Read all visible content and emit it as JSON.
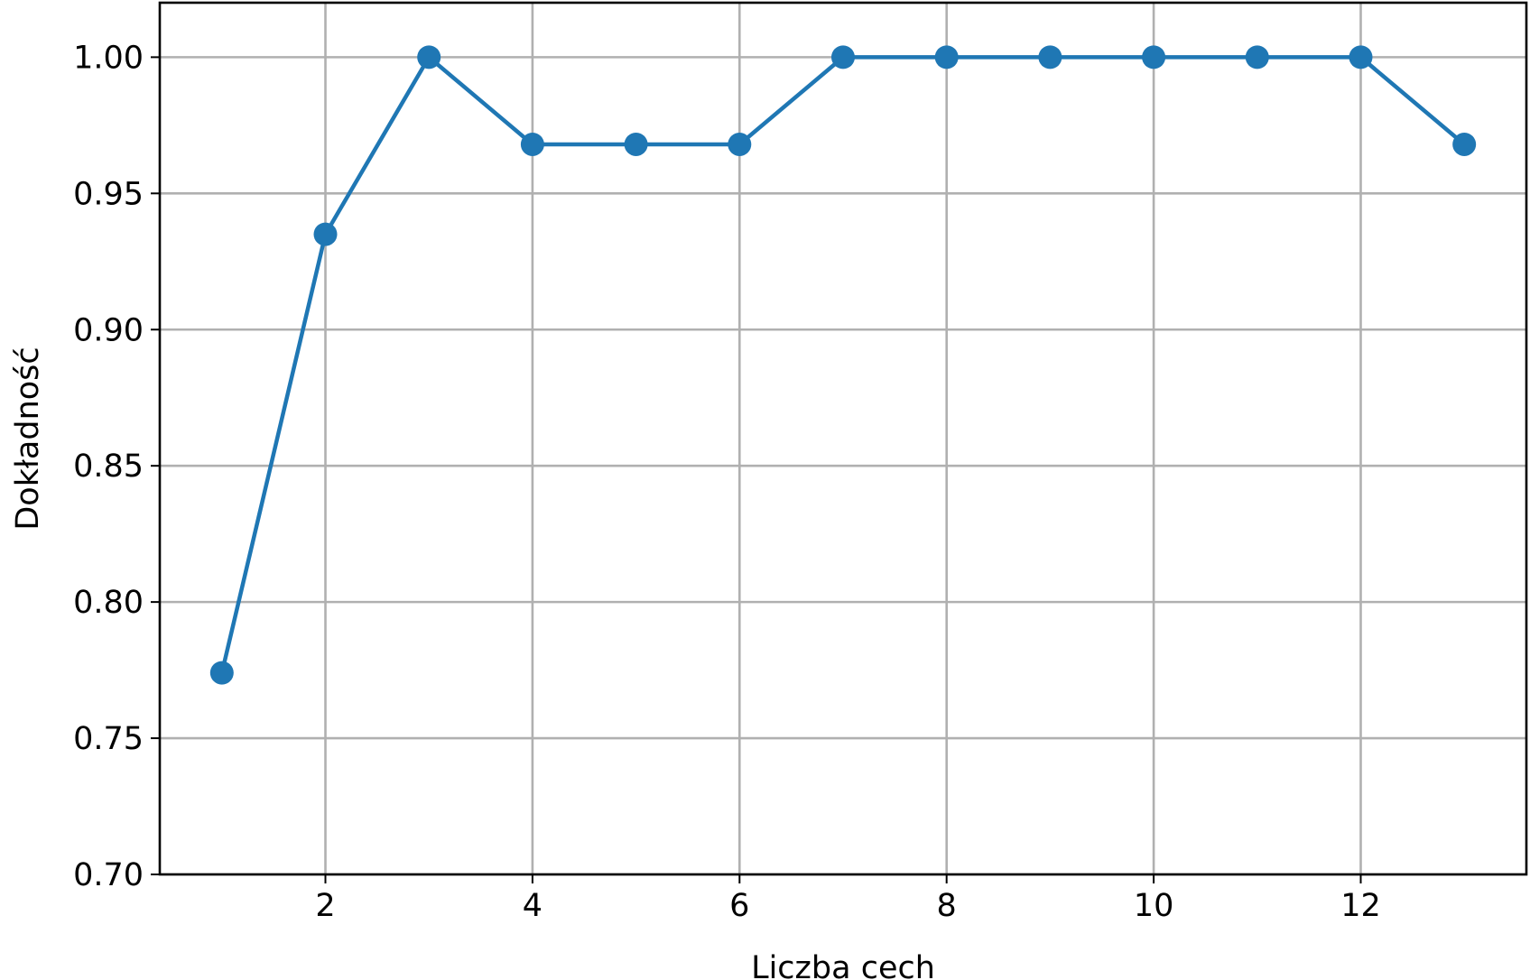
{
  "chart_data": {
    "type": "line",
    "title": "",
    "xlabel": "Liczba cech",
    "ylabel": "Dokładność",
    "x": [
      1,
      2,
      3,
      4,
      5,
      6,
      7,
      8,
      9,
      10,
      11,
      12,
      13
    ],
    "series": [
      {
        "values": [
          0.774,
          0.935,
          1.0,
          0.968,
          0.968,
          0.968,
          1.0,
          1.0,
          1.0,
          1.0,
          1.0,
          1.0,
          0.968
        ],
        "color": "#1f77b4",
        "marker": "circle"
      }
    ],
    "xlim": [
      0.4,
      13.6
    ],
    "ylim": [
      0.7,
      1.02
    ],
    "xticks": [
      2,
      4,
      6,
      8,
      10,
      12
    ],
    "xtick_labels": [
      "2",
      "4",
      "6",
      "8",
      "10",
      "12"
    ],
    "yticks": [
      0.7,
      0.75,
      0.8,
      0.85,
      0.9,
      0.95,
      1.0
    ],
    "ytick_labels": [
      "0.70",
      "0.75",
      "0.80",
      "0.85",
      "0.90",
      "0.95",
      "1.00"
    ],
    "grid": true,
    "legend": "none"
  }
}
